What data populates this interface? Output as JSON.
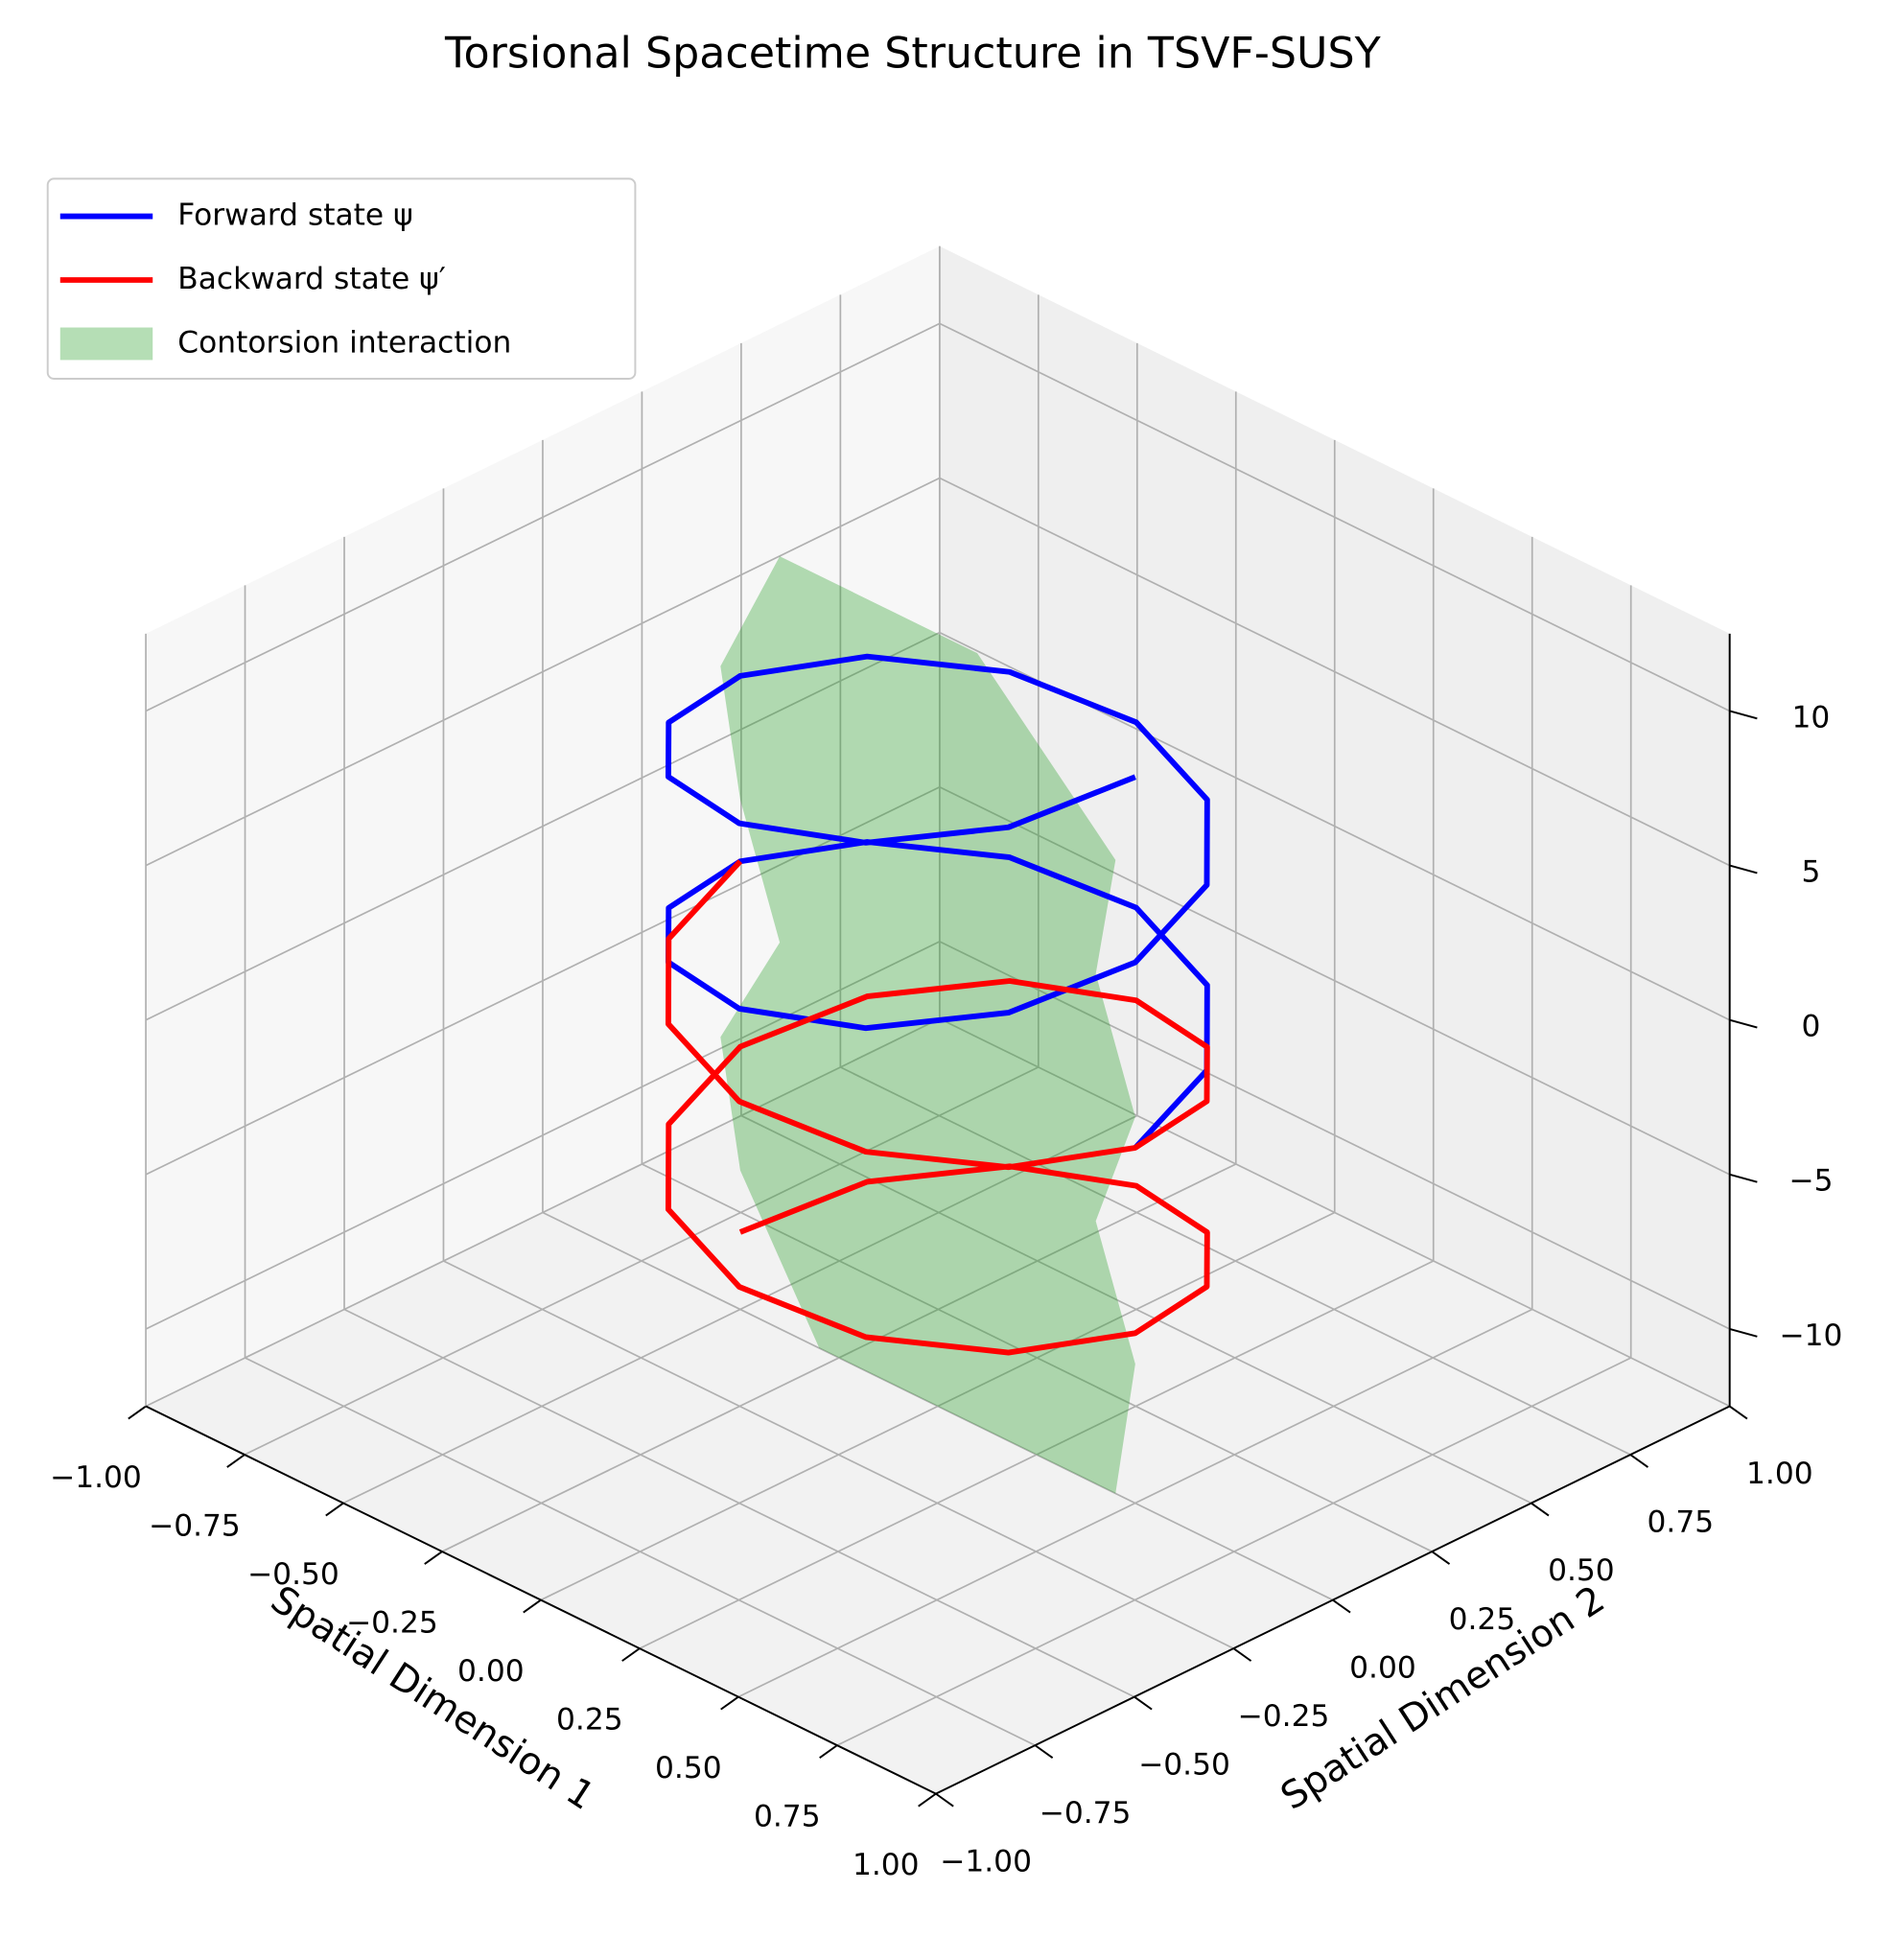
{
  "chart_data": {
    "type": "line3d",
    "title": "Torsional Spacetime Structure in TSVF-SUSY",
    "xlabel": "Spatial Dimension 1",
    "ylabel": "Spatial Dimension 2",
    "xlim": [
      -1,
      1
    ],
    "ylim": [
      -1,
      1
    ],
    "zlim": [
      -12.5,
      12.5
    ],
    "xticks": [
      {
        "value": -1,
        "label": "−1.00"
      },
      {
        "value": -0.75,
        "label": "−0.75"
      },
      {
        "value": -0.5,
        "label": "−0.50"
      },
      {
        "value": -0.25,
        "label": "−0.25"
      },
      {
        "value": 0,
        "label": "0.00"
      },
      {
        "value": 0.25,
        "label": "0.25"
      },
      {
        "value": 0.5,
        "label": "0.50"
      },
      {
        "value": 0.75,
        "label": "0.75"
      },
      {
        "value": 1,
        "label": "1.00"
      }
    ],
    "yticks": [
      {
        "value": -1,
        "label": "−1.00"
      },
      {
        "value": -0.75,
        "label": "−0.75"
      },
      {
        "value": -0.5,
        "label": "−0.50"
      },
      {
        "value": -0.25,
        "label": "−0.25"
      },
      {
        "value": 0,
        "label": "0.00"
      },
      {
        "value": 0.25,
        "label": "0.25"
      },
      {
        "value": 0.5,
        "label": "0.50"
      },
      {
        "value": 0.75,
        "label": "0.75"
      },
      {
        "value": 1,
        "label": "1.00"
      }
    ],
    "zticks": [
      {
        "value": -10,
        "label": "−10"
      },
      {
        "value": -5,
        "label": "−5"
      },
      0,
      5,
      10
    ],
    "grid": true,
    "legend": "upper left",
    "series": [
      {
        "name": "Forward state ψ",
        "color": "#0000ff",
        "x": [
          0.5,
          0.43,
          0.25,
          0,
          -0.25,
          -0.43,
          -0.5,
          -0.43,
          -0.25,
          0,
          0.25,
          0.43,
          0.5,
          0.43,
          0.25,
          0,
          -0.25,
          -0.43,
          -0.5,
          -0.43,
          -0.25,
          0,
          0.25,
          0.43,
          0.5
        ],
        "y": [
          0,
          0.25,
          0.43,
          0.5,
          0.43,
          0.25,
          0,
          -0.25,
          -0.43,
          -0.5,
          -0.43,
          -0.25,
          0,
          0.25,
          0.43,
          0.5,
          0.43,
          0.25,
          0,
          -0.25,
          -0.43,
          -0.5,
          -0.43,
          -0.25,
          0
        ],
        "z": [
          -1,
          -0.5,
          0,
          0.5,
          1,
          1.5,
          2,
          2.5,
          3,
          3.5,
          4,
          4.5,
          5,
          5.5,
          6,
          6.5,
          7,
          7.5,
          8,
          8.5,
          9,
          9.5,
          10,
          10.5,
          11
        ]
      },
      {
        "name": "Backward state ψ′",
        "color": "#ff0000",
        "x": [
          -0.5,
          -0.43,
          -0.25,
          0,
          0.25,
          0.43,
          0.5,
          0.43,
          0.25,
          0,
          -0.25,
          -0.43,
          -0.5,
          -0.43,
          -0.25,
          0,
          0.25,
          0.43,
          0.5,
          0.43,
          0.25,
          0,
          -0.25,
          -0.43,
          -0.5
        ],
        "y": [
          0,
          0.25,
          0.43,
          0.5,
          0.43,
          0.25,
          0,
          -0.25,
          -0.43,
          -0.5,
          -0.43,
          -0.25,
          0,
          0.25,
          0.43,
          0.5,
          0.43,
          0.25,
          0,
          -0.25,
          -0.43,
          -0.5,
          -0.43,
          -0.25,
          0
        ],
        "z": [
          -10,
          -9.5,
          -9,
          -8.5,
          -8,
          -7.5,
          -7,
          -6.5,
          -6,
          -5.5,
          -5,
          -4.5,
          -4,
          -3.5,
          -3,
          -2.5,
          -2,
          -1.5,
          -1,
          -0.5,
          0,
          0.5,
          1,
          1.5,
          2
        ]
      }
    ],
    "surface": {
      "name": "Contorsion interaction",
      "color": "#2ca02c",
      "x": [
        -0.4,
        -0.55,
        -0.5,
        -0.4,
        -0.55,
        -0.5,
        -0.3,
        0.45,
        0.5,
        0.4,
        0.5,
        0.4,
        0.45,
        0.1
      ],
      "y": [
        0,
        0,
        0,
        0,
        0,
        0,
        0,
        0,
        0,
        0,
        0,
        0,
        0,
        0
      ],
      "z": [
        12.5,
        8,
        4,
        0,
        -4,
        -8,
        -12.5,
        -12.5,
        -8,
        -4,
        0,
        4,
        8,
        12.5
      ]
    }
  }
}
